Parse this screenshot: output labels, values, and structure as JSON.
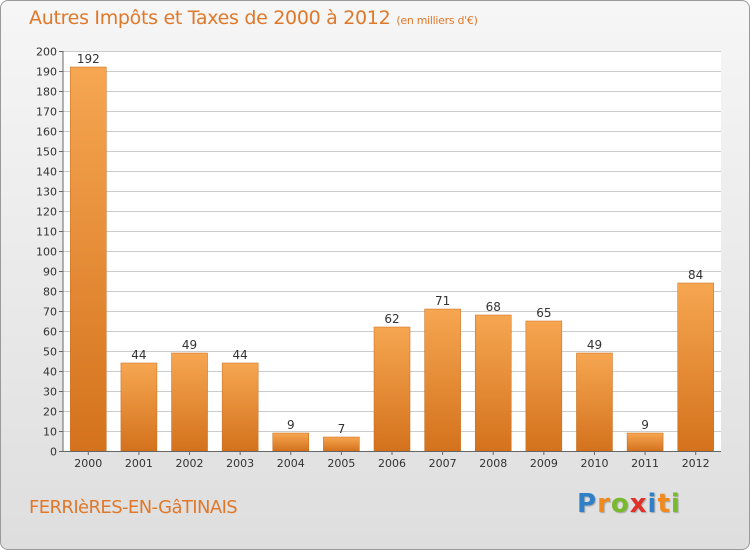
{
  "header": {
    "title": "Autres Impôts et Taxes de 2000 à 2012",
    "unit_note": "(en milliers d'€)"
  },
  "footer": {
    "commune": "FERRIèRES-EN-GâTINAIS",
    "brand": [
      "P",
      "r",
      "o",
      "x",
      "i",
      "t",
      "i"
    ],
    "brand_colors": [
      "#2f80c8",
      "#f08a1c",
      "#7ab82e",
      "#e0302a",
      "#2f80c8",
      "#f08a1c",
      "#7ab82e"
    ]
  },
  "colors": {
    "accent": "#e0782a",
    "bar_light": "#f6a651",
    "bar_dark": "#d4721d",
    "grid": "#cccccc",
    "axis": "#666666"
  },
  "chart_data": {
    "type": "bar",
    "categories": [
      "2000",
      "2001",
      "2002",
      "2003",
      "2004",
      "2005",
      "2006",
      "2007",
      "2008",
      "2009",
      "2010",
      "2011",
      "2012"
    ],
    "values": [
      192,
      44,
      49,
      44,
      9,
      7,
      62,
      71,
      68,
      65,
      49,
      9,
      84
    ],
    "ylim": [
      0,
      200
    ],
    "ytick_step": 10,
    "grid": "horizontal",
    "legend": "none"
  }
}
